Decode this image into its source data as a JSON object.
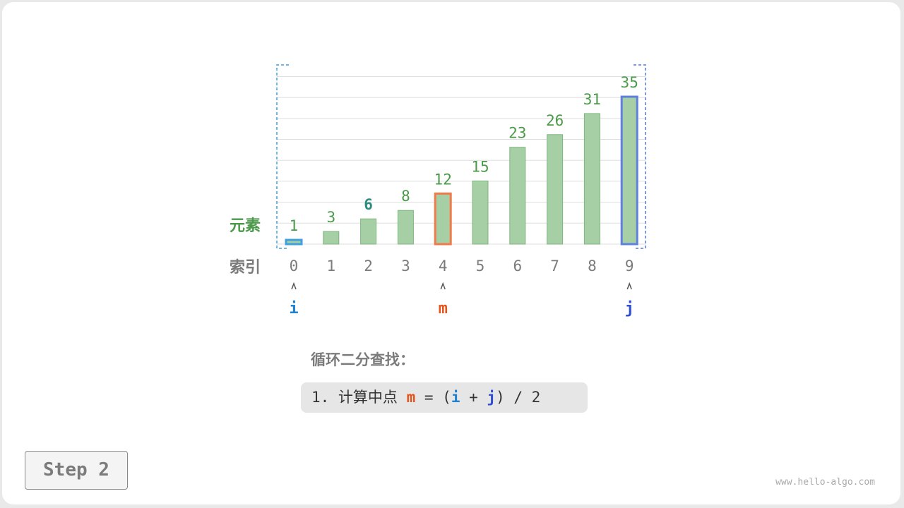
{
  "labels": {
    "elements": "元素",
    "index": "索引"
  },
  "array": [
    1,
    3,
    6,
    8,
    12,
    15,
    23,
    26,
    31,
    35
  ],
  "indices": [
    "0",
    "1",
    "2",
    "3",
    "4",
    "5",
    "6",
    "7",
    "8",
    "9"
  ],
  "pointers": {
    "i": {
      "label": "i",
      "index": 0,
      "color": "#1c82d1"
    },
    "m": {
      "label": "m",
      "index": 4,
      "color": "#e8531a"
    },
    "j": {
      "label": "j",
      "index": 9,
      "color": "#2f4fd0"
    }
  },
  "highlighted_value_index": 2,
  "colors": {
    "bar_fill": "#a6cfa5",
    "bar_stroke": "#7fb57e",
    "value_text": "#4a9a4a",
    "highlight_value": "#2e8b80",
    "index_text": "#7b7b7b",
    "range_bracket_left": "#3ea0e0",
    "range_bracket_right": "#5577e0",
    "m_outline": "#f07a4a",
    "j_outline": "#6080e0",
    "i_outline": "#3ea0e0"
  },
  "section_title": "循环二分查找：",
  "formula": {
    "prefix": "1. 计算中点 ",
    "m": "m",
    "eq": " = (",
    "i": "i",
    "plus": " + ",
    "j": "j",
    "suffix": ") / 2"
  },
  "step_label": "Step 2",
  "watermark": "www.hello-algo.com"
}
